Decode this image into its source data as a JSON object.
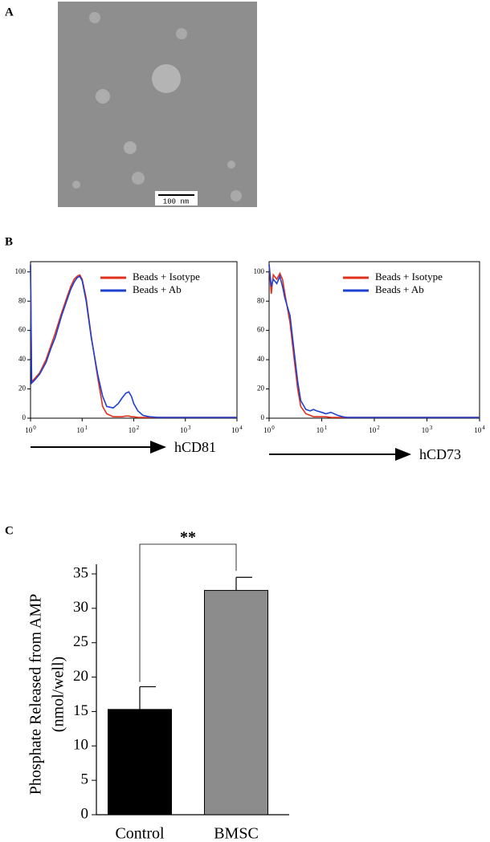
{
  "panels": {
    "a": {
      "label": "A",
      "scale_bar": "100 nm"
    }
  },
  "chart_data": [
    {
      "type": "line",
      "panel": "B",
      "xscale": "log",
      "xlabel": "hCD81",
      "x": [
        1,
        1.05,
        1.2,
        1.5,
        2,
        2.5,
        3,
        4,
        5,
        6,
        7,
        8,
        9,
        10,
        12,
        15,
        20,
        25,
        30,
        40,
        50,
        60,
        70,
        80,
        90,
        100,
        120,
        150,
        200,
        300,
        1000,
        10000
      ],
      "series": [
        {
          "name": "Beads + Isotype",
          "color": "#e0301e",
          "values": [
            105,
            25,
            27,
            31,
            40,
            50,
            58,
            72,
            82,
            90,
            95,
            97,
            98,
            95,
            82,
            56,
            28,
            8,
            3,
            1,
            1,
            1,
            1.5,
            1.5,
            1,
            1,
            0.5,
            0.5,
            0.5,
            0.5,
            0.5,
            0.5
          ]
        },
        {
          "name": "Beads + Ab",
          "color": "#2040d0",
          "values": [
            105,
            24,
            26,
            30,
            38,
            48,
            55,
            70,
            80,
            88,
            93,
            96,
            97,
            94,
            80,
            55,
            30,
            15,
            8,
            7,
            10,
            14,
            17,
            18,
            15,
            10,
            5,
            2,
            1,
            0.5,
            0.5,
            0.5
          ]
        }
      ],
      "xlim": [
        1,
        10000
      ],
      "xticks": [
        {
          "value": 1,
          "label": "10",
          "exponent": "0"
        },
        {
          "value": 10,
          "label": "10",
          "exponent": "1"
        },
        {
          "value": 100,
          "label": "10",
          "exponent": "2"
        },
        {
          "value": 1000,
          "label": "10",
          "exponent": "3"
        },
        {
          "value": 10000,
          "label": "10",
          "exponent": "4"
        }
      ],
      "ylim": [
        0,
        107
      ],
      "yticks": [
        0,
        20,
        40,
        60,
        80,
        100
      ],
      "legend": "upper right"
    },
    {
      "type": "line",
      "xscale": "log",
      "xlabel": "hCD73",
      "x": [
        1,
        1.1,
        1.2,
        1.4,
        1.6,
        1.8,
        2,
        2.5,
        3,
        3.5,
        4,
        5,
        6,
        7,
        8,
        10,
        12,
        15,
        20,
        25,
        30,
        40,
        100,
        10000
      ],
      "series": [
        {
          "name": "Beads + Isotype",
          "color": "#e0301e",
          "values": [
            105,
            85,
            98,
            95,
            99,
            95,
            85,
            65,
            40,
            20,
            8,
            3,
            2,
            1,
            1,
            1,
            1,
            0.5,
            0.5,
            0.5,
            0.5,
            0.5,
            0.5,
            0.5
          ]
        },
        {
          "name": "Beads + Ab",
          "color": "#2040d0",
          "values": [
            105,
            90,
            95,
            92,
            97,
            90,
            82,
            70,
            45,
            25,
            12,
            6,
            5,
            6,
            5,
            4,
            3,
            4,
            2,
            1,
            0.5,
            0.5,
            0.5,
            0.5
          ]
        }
      ],
      "xlim": [
        1,
        10000
      ],
      "xticks": [
        {
          "value": 1,
          "label": "10",
          "exponent": "0"
        },
        {
          "value": 10,
          "label": "10",
          "exponent": "1"
        },
        {
          "value": 100,
          "label": "10",
          "exponent": "2"
        },
        {
          "value": 1000,
          "label": "10",
          "exponent": "3"
        },
        {
          "value": 10000,
          "label": "10",
          "exponent": "4"
        }
      ],
      "ylim": [
        0,
        107
      ],
      "yticks": [
        0,
        20,
        40,
        60,
        80,
        100
      ],
      "legend": "upper right"
    },
    {
      "type": "bar",
      "panel": "C",
      "ylabel": [
        "Phosphate Released from AMP",
        "(nmol/well)"
      ],
      "categories": [
        "Control",
        "BMSC"
      ],
      "values": [
        15.3,
        32.6
      ],
      "errors": [
        3.3,
        1.9
      ],
      "colors": [
        "#000000",
        "#8c8c8c"
      ],
      "annotation": "**",
      "ylim": [
        0,
        35
      ],
      "yticks": [
        0,
        5,
        10,
        15,
        20,
        25,
        30,
        35
      ]
    }
  ]
}
